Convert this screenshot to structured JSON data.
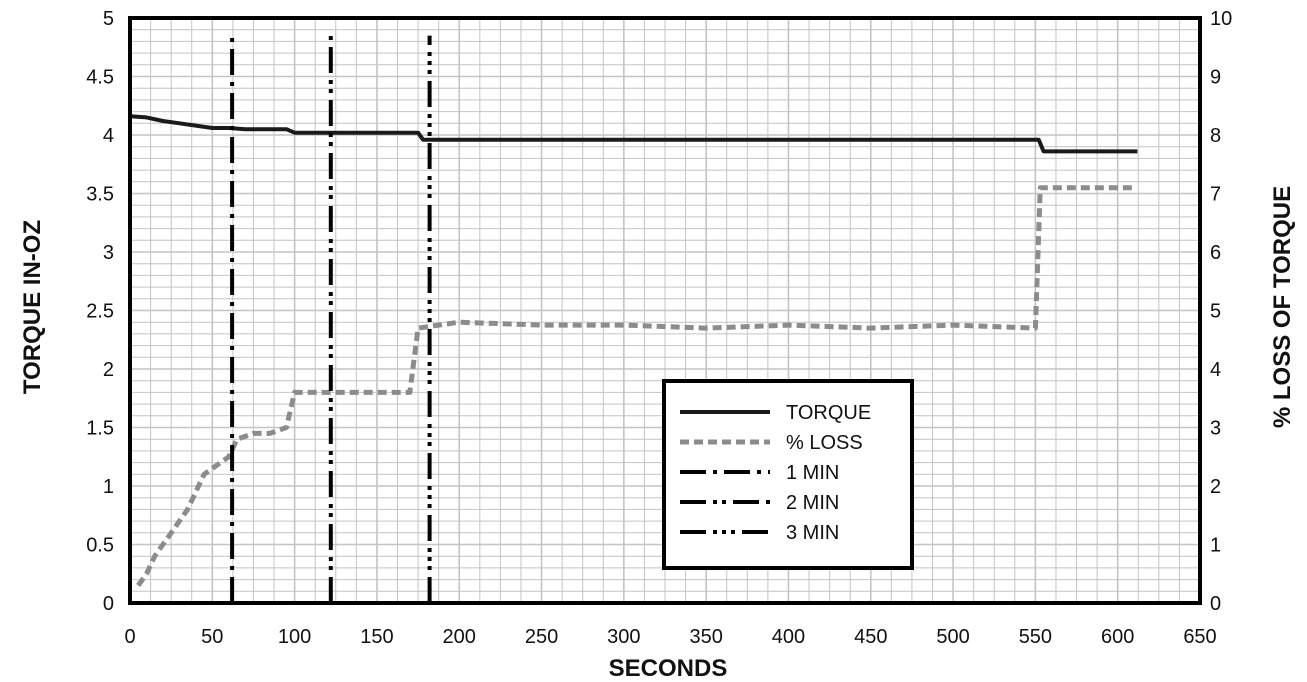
{
  "chart_data": {
    "type": "line",
    "title": "",
    "xlabel": "SECONDS",
    "ylabel": "TORQUE IN-OZ",
    "y2label": "% LOSS OF TORQUE",
    "xlim": [
      0,
      650
    ],
    "ylim": [
      0,
      5
    ],
    "y2lim": [
      0,
      10
    ],
    "x_ticks": [
      "0",
      "50",
      "100",
      "150",
      "200",
      "250",
      "300",
      "350",
      "400",
      "450",
      "500",
      "550",
      "600",
      "650"
    ],
    "y_ticks": [
      "0",
      "0.5",
      "1",
      "1.5",
      "2",
      "2.5",
      "3",
      "3.5",
      "4",
      "4.5",
      "5"
    ],
    "y2_ticks": [
      "0",
      "1",
      "2",
      "3",
      "4",
      "5",
      "6",
      "7",
      "8",
      "9",
      "10"
    ],
    "grid": true,
    "legend_position": "center-right",
    "series": [
      {
        "name": "TORQUE",
        "axis": "left",
        "style": "solid",
        "color": "#1a1a1a",
        "points": [
          [
            0,
            4.16
          ],
          [
            10,
            4.15
          ],
          [
            20,
            4.12
          ],
          [
            30,
            4.1
          ],
          [
            40,
            4.08
          ],
          [
            50,
            4.06
          ],
          [
            60,
            4.06
          ],
          [
            70,
            4.05
          ],
          [
            80,
            4.05
          ],
          [
            95,
            4.05
          ],
          [
            100,
            4.02
          ],
          [
            130,
            4.02
          ],
          [
            160,
            4.02
          ],
          [
            175,
            4.02
          ],
          [
            178,
            3.96
          ],
          [
            200,
            3.96
          ],
          [
            300,
            3.96
          ],
          [
            400,
            3.96
          ],
          [
            500,
            3.96
          ],
          [
            552,
            3.96
          ],
          [
            555,
            3.86
          ],
          [
            580,
            3.86
          ],
          [
            612,
            3.86
          ]
        ]
      },
      {
        "name": "% LOSS",
        "axis": "right",
        "style": "dashed",
        "color": "#8c8c8c",
        "points": [
          [
            5,
            0.3
          ],
          [
            10,
            0.5
          ],
          [
            15,
            0.8
          ],
          [
            20,
            1
          ],
          [
            25,
            1.2
          ],
          [
            30,
            1.4
          ],
          [
            35,
            1.6
          ],
          [
            40,
            1.9
          ],
          [
            45,
            2.2
          ],
          [
            50,
            2.3
          ],
          [
            55,
            2.4
          ],
          [
            60,
            2.5
          ],
          [
            65,
            2.8
          ],
          [
            75,
            2.9
          ],
          [
            85,
            2.9
          ],
          [
            95,
            3
          ],
          [
            100,
            3.6
          ],
          [
            120,
            3.6
          ],
          [
            140,
            3.6
          ],
          [
            160,
            3.6
          ],
          [
            170,
            3.6
          ],
          [
            175,
            4.7
          ],
          [
            200,
            4.8
          ],
          [
            250,
            4.75
          ],
          [
            300,
            4.75
          ],
          [
            350,
            4.7
          ],
          [
            400,
            4.75
          ],
          [
            450,
            4.7
          ],
          [
            500,
            4.75
          ],
          [
            550,
            4.7
          ],
          [
            553,
            7.1
          ],
          [
            580,
            7.1
          ],
          [
            610,
            7.1
          ]
        ]
      },
      {
        "name": "1 MIN",
        "axis": "left",
        "style": "dashdot",
        "color": "#000000",
        "points": [
          [
            62,
            0
          ],
          [
            62,
            4.85
          ]
        ]
      },
      {
        "name": "2 MIN",
        "axis": "left",
        "style": "dashdotdot",
        "color": "#000000",
        "points": [
          [
            122,
            0
          ],
          [
            122,
            4.85
          ]
        ]
      },
      {
        "name": "3 MIN",
        "axis": "left",
        "style": "dashdotdotdot",
        "color": "#000000",
        "points": [
          [
            182,
            0
          ],
          [
            182,
            4.85
          ]
        ]
      }
    ]
  }
}
